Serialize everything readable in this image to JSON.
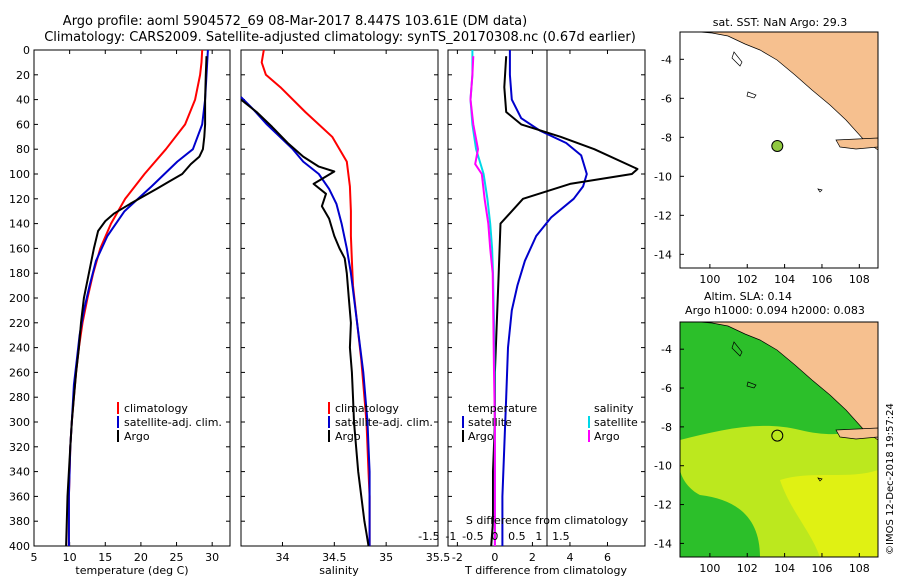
{
  "titles": {
    "line1": "Argo profile: aoml 5904572_69 08-Mar-2017 8.447S 103.61E (DM data)",
    "line2": "Climatology: CARS2009. Satellite-adjusted climatology: synTS_20170308.nc (0.67d earlier)",
    "map_top": "sat. SST: NaN Argo: 29.3",
    "map_bottom_1": "Altim. SLA: 0.14",
    "map_bottom_2": "Argo h1000: 0.094 h2000: 0.083"
  },
  "watermark": "©IMOS 12-Dec-2018 19:57:24",
  "colors": {
    "climatology": "#ff0000",
    "satellite": "#0000cc",
    "argo": "#000000",
    "sat_salinity": "#00d8e8",
    "argo_salinity": "#ff00ff",
    "land": "#f6c08f",
    "anomaly_green": "#2cbf2a",
    "anomaly_yellow": "#d6ee1c"
  },
  "chart_data": [
    {
      "id": "temperature",
      "type": "line",
      "xlabel": "temperature (deg C)",
      "ylabel": "",
      "xlim": [
        5,
        32.5
      ],
      "ylim": [
        400,
        0
      ],
      "xticks": [
        "5",
        "10",
        "15",
        "20",
        "25",
        "30"
      ],
      "xtick_values": [
        5,
        10,
        15,
        20,
        25,
        30
      ],
      "yticks": [
        "0",
        "20",
        "40",
        "60",
        "80",
        "100",
        "120",
        "140",
        "160",
        "180",
        "200",
        "220",
        "240",
        "260",
        "280",
        "300",
        "320",
        "340",
        "360",
        "380",
        "400"
      ],
      "ytick_values": [
        0,
        20,
        40,
        60,
        80,
        100,
        120,
        140,
        160,
        180,
        200,
        220,
        240,
        260,
        280,
        300,
        320,
        340,
        360,
        380,
        400
      ],
      "legend": [
        "climatology",
        "satellite-adj. clim.",
        "Argo"
      ],
      "series": [
        {
          "name": "climatology",
          "color": "climatology",
          "x": [
            28.6,
            28.5,
            28.3,
            27.6,
            26.2,
            23.5,
            20.5,
            17.8,
            15.8,
            14.3,
            13.3,
            12.5,
            11.8,
            11.3,
            10.9,
            10.6,
            10.3,
            10.1,
            10.0,
            9.9,
            9.9
          ],
          "y": [
            0,
            10,
            20,
            40,
            60,
            80,
            100,
            120,
            140,
            160,
            180,
            200,
            220,
            240,
            260,
            280,
            300,
            320,
            340,
            360,
            400
          ]
        },
        {
          "name": "satellite-adj. clim.",
          "color": "satellite",
          "x": [
            29.4,
            29.3,
            29.2,
            29.0,
            28.6,
            27.3,
            25.1,
            21.5,
            17.7,
            15.3,
            13.7,
            12.8,
            12.0,
            11.4,
            11.0,
            10.6,
            10.3,
            10.1,
            10.0,
            9.9,
            9.9
          ],
          "y": [
            0,
            10,
            20,
            40,
            60,
            80,
            90,
            110,
            130,
            150,
            170,
            190,
            210,
            230,
            250,
            270,
            300,
            320,
            340,
            360,
            400
          ]
        },
        {
          "name": "Argo",
          "color": "argo",
          "x": [
            29.2,
            29.1,
            29.0,
            29.0,
            28.9,
            28.7,
            28.2,
            27.0,
            25.8,
            24.0,
            22.2,
            18.5,
            16.2,
            15.0,
            14.0,
            13.4,
            12.7,
            12.0,
            11.6,
            11.3,
            10.9,
            10.6,
            10.3,
            10.1,
            9.9,
            9.7,
            9.6,
            9.5
          ],
          "y": [
            5,
            20,
            40,
            60,
            70,
            80,
            86,
            92,
            100,
            106,
            112,
            124,
            132,
            138,
            146,
            160,
            180,
            200,
            220,
            240,
            260,
            280,
            300,
            320,
            340,
            360,
            380,
            400
          ]
        }
      ]
    },
    {
      "id": "salinity",
      "type": "line",
      "xlabel": "salinity",
      "ylabel": "",
      "xlim": [
        33.6,
        35.5
      ],
      "ylim": [
        400,
        0
      ],
      "xticks": [
        "34",
        "34.5",
        "35",
        "35.5"
      ],
      "xtick_values": [
        34,
        34.5,
        35,
        35.5
      ],
      "yticks": [],
      "ytick_values": [],
      "legend": [
        "climatology",
        "satellite-adj. clim.",
        "Argo"
      ],
      "series": [
        {
          "name": "climatology",
          "color": "climatology",
          "x": [
            33.82,
            33.8,
            33.84,
            33.98,
            34.22,
            34.48,
            34.62,
            34.65,
            34.66,
            34.66,
            34.67,
            34.68,
            34.72,
            34.76,
            34.79,
            34.81,
            34.82,
            34.83,
            34.84,
            34.84
          ],
          "y": [
            0,
            10,
            20,
            30,
            50,
            70,
            90,
            110,
            130,
            150,
            170,
            190,
            220,
            250,
            280,
            300,
            320,
            340,
            360,
            400
          ]
        },
        {
          "name": "satellite-adj. clim.",
          "color": "satellite",
          "x": [
            33.6,
            33.72,
            33.85,
            34.0,
            34.1,
            34.2,
            34.35,
            34.45,
            34.52,
            34.57,
            34.62,
            34.66,
            34.69,
            34.72,
            34.75,
            34.78,
            34.8,
            34.82,
            34.83,
            34.84,
            34.84
          ],
          "y": [
            38,
            48,
            60,
            72,
            80,
            90,
            100,
            112,
            124,
            140,
            160,
            180,
            200,
            220,
            240,
            260,
            280,
            300,
            320,
            340,
            400
          ]
        },
        {
          "name": "Argo",
          "color": "argo",
          "x": [
            33.6,
            33.75,
            33.9,
            34.05,
            34.2,
            34.35,
            34.5,
            34.3,
            34.42,
            34.38,
            34.45,
            34.5,
            34.55,
            34.6,
            34.62,
            34.64,
            34.66,
            34.65,
            34.67,
            34.68,
            34.69,
            34.71,
            34.73,
            34.76,
            34.79,
            34.81,
            34.83
          ],
          "y": [
            40,
            50,
            62,
            75,
            86,
            94,
            98,
            108,
            116,
            126,
            136,
            150,
            160,
            168,
            180,
            200,
            220,
            240,
            260,
            280,
            300,
            320,
            340,
            360,
            380,
            390,
            400
          ]
        }
      ]
    },
    {
      "id": "difference",
      "type": "line",
      "xlabel": "T difference from climatology",
      "ylabel": "",
      "xlim": [
        -2.5,
        8
      ],
      "ylim": [
        400,
        0
      ],
      "xticks": [
        "-2",
        "0",
        "2",
        "4",
        "6"
      ],
      "xtick_values": [
        -2,
        0,
        2,
        4,
        6
      ],
      "top_axis_label": "S difference from climatology",
      "top_axis_ticks": [
        "-1.5",
        "-1",
        "-0.5",
        "0",
        "0.5",
        "1",
        "1.5"
      ],
      "top_axis_values": [
        -1.5,
        -1,
        -0.5,
        0,
        0.5,
        1,
        1.5
      ],
      "yticks": [],
      "ytick_values": [],
      "legend": [
        "temperature",
        "satellite",
        "Argo",
        "salinity",
        "satellite",
        "Argo"
      ],
      "series": [
        {
          "name": "temperature satellite",
          "color": "satellite",
          "x": [
            0.8,
            0.8,
            0.9,
            1.4,
            2.4,
            3.8,
            4.6,
            4.9,
            4.7,
            4.2,
            3.0,
            2.2,
            1.6,
            1.2,
            0.9,
            0.7,
            0.6,
            0.5,
            0.4,
            0.4
          ],
          "y": [
            0,
            20,
            40,
            55,
            65,
            75,
            85,
            100,
            110,
            120,
            135,
            150,
            170,
            190,
            210,
            240,
            280,
            320,
            360,
            400
          ]
        },
        {
          "name": "temperature Argo",
          "color": "argo",
          "x": [
            0.6,
            0.5,
            0.6,
            1.4,
            3.5,
            5.3,
            7.6,
            7.3,
            4.0,
            1.5,
            0.3,
            0.2,
            0.1,
            0.0,
            0.0,
            -0.1,
            -0.1,
            -0.2
          ],
          "y": [
            5,
            30,
            50,
            60,
            70,
            80,
            96,
            100,
            108,
            120,
            140,
            180,
            220,
            260,
            300,
            340,
            380,
            400
          ]
        },
        {
          "name": "salinity satellite",
          "color": "sat_salinity",
          "x": [
            -1.2,
            -1.2,
            -1.3,
            -1.2,
            -1.0,
            -0.6,
            -0.4,
            -0.25,
            -0.15,
            -0.1,
            -0.05,
            -0.02,
            0.0,
            0.0
          ],
          "y": [
            0,
            20,
            40,
            60,
            80,
            100,
            120,
            140,
            160,
            180,
            220,
            260,
            300,
            400
          ]
        },
        {
          "name": "salinity Argo",
          "color": "argo_salinity",
          "x": [
            -1.15,
            -1.2,
            -1.3,
            -1.15,
            -0.9,
            -1.05,
            -0.7,
            -0.55,
            -0.35,
            -0.25,
            -0.12,
            -0.08,
            -0.05,
            0.0,
            0.0
          ],
          "y": [
            5,
            20,
            40,
            60,
            80,
            92,
            100,
            120,
            140,
            160,
            180,
            220,
            260,
            300,
            400
          ]
        }
      ]
    },
    {
      "id": "map_sst",
      "type": "map",
      "title": "sat. SST: NaN Argo: 29.3",
      "xlim": [
        98.4,
        109
      ],
      "ylim": [
        -14.7,
        -2.6
      ],
      "xticks": [
        "100",
        "102",
        "104",
        "106",
        "108"
      ],
      "xtick_values": [
        100,
        102,
        104,
        106,
        108
      ],
      "yticks": [
        "-4",
        "-6",
        "-8",
        "-10",
        "-12",
        "-14"
      ],
      "ytick_values": [
        -4,
        -6,
        -8,
        -10,
        -12,
        -14
      ],
      "argo_lon": 103.61,
      "argo_lat": -8.447
    },
    {
      "id": "map_sla",
      "type": "map",
      "title": "Altim. SLA: 0.14",
      "xlim": [
        98.4,
        109
      ],
      "ylim": [
        -14.7,
        -2.6
      ],
      "xticks": [
        "100",
        "102",
        "104",
        "106",
        "108"
      ],
      "xtick_values": [
        100,
        102,
        104,
        106,
        108
      ],
      "yticks": [
        "-4",
        "-6",
        "-8",
        "-10",
        "-12",
        "-14"
      ],
      "ytick_values": [
        -4,
        -6,
        -8,
        -10,
        -12,
        -14
      ],
      "argo_lon": 103.61,
      "argo_lat": -8.447
    }
  ]
}
